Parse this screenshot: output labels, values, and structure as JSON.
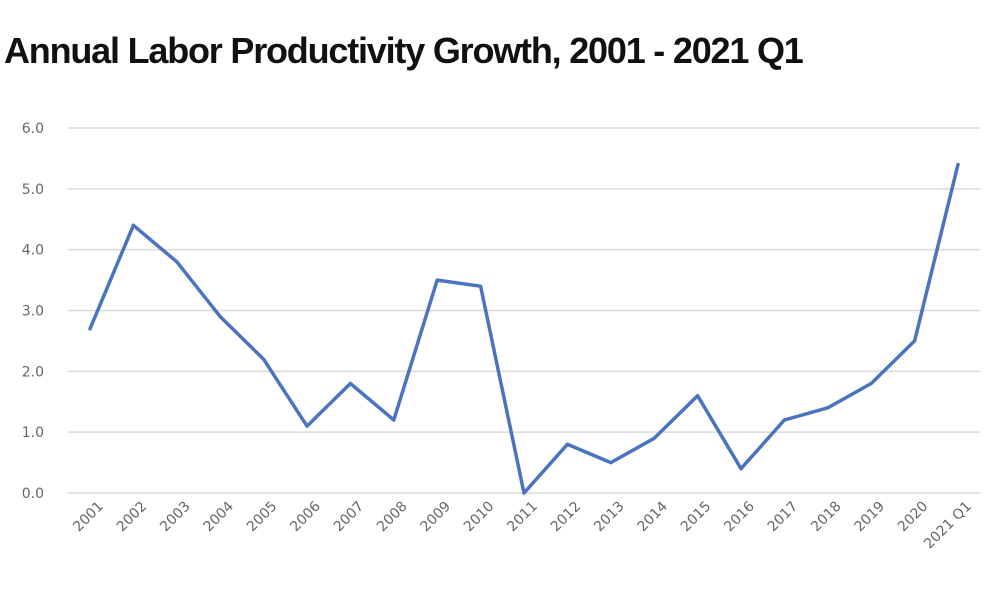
{
  "chart_data": {
    "type": "line",
    "title": "Annual Labor Productivity Growth, 2001 - 2021 Q1",
    "xlabel": "",
    "ylabel": "",
    "categories": [
      "2001",
      "2002",
      "2003",
      "2004",
      "2005",
      "2006",
      "2007",
      "2008",
      "2009",
      "2010",
      "2011",
      "2012",
      "2013",
      "2014",
      "2015",
      "2016",
      "2017",
      "2018",
      "2019",
      "2020",
      "2021 Q1"
    ],
    "values": [
      2.7,
      4.4,
      3.8,
      2.9,
      2.2,
      1.1,
      1.8,
      1.2,
      3.5,
      3.4,
      0.0,
      0.8,
      0.5,
      0.9,
      1.6,
      0.4,
      1.2,
      1.4,
      1.8,
      2.5,
      5.4
    ],
    "ylim": [
      0,
      6
    ],
    "yticks": [
      "0.0",
      "1.0",
      "2.0",
      "3.0",
      "4.0",
      "5.0",
      "6.0"
    ],
    "grid": true,
    "legend": "none",
    "line_color": "#4a74be",
    "grid_color": "#d9d9d9"
  }
}
